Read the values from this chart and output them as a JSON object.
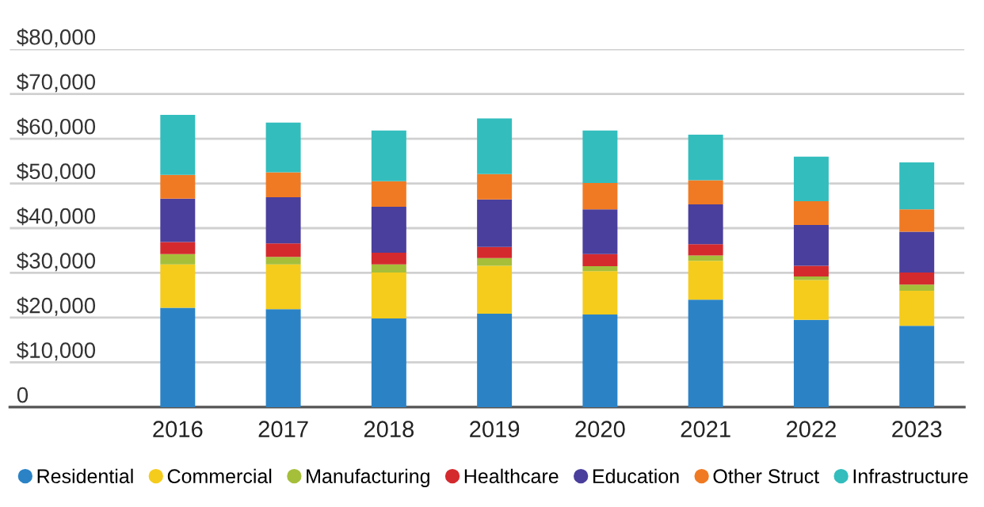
{
  "chart_data": {
    "type": "bar",
    "stacked": true,
    "categories": [
      "2016",
      "2017",
      "2018",
      "2019",
      "2020",
      "2021",
      "2022",
      "2023"
    ],
    "series": [
      {
        "name": "Residential",
        "color": "#2b83c6",
        "values": [
          22200,
          21900,
          19800,
          20900,
          20700,
          24000,
          19500,
          18200
        ]
      },
      {
        "name": "Commercial",
        "color": "#f5cc1c",
        "values": [
          9700,
          10000,
          10300,
          10700,
          9700,
          8700,
          8900,
          7800
        ]
      },
      {
        "name": "Manufacturing",
        "color": "#a5bf3a",
        "values": [
          2300,
          1700,
          1800,
          1700,
          1100,
          1200,
          800,
          1400
        ]
      },
      {
        "name": "Healthcare",
        "color": "#d42a2e",
        "values": [
          2700,
          3000,
          2600,
          2500,
          2700,
          2500,
          2400,
          2700
        ]
      },
      {
        "name": "Education",
        "color": "#4a3f9c",
        "values": [
          9700,
          10300,
          10300,
          10600,
          10000,
          8900,
          9100,
          9100
        ]
      },
      {
        "name": "Other Struct",
        "color": "#f07a23",
        "values": [
          5300,
          5600,
          5700,
          5700,
          5900,
          5400,
          5300,
          5000
        ]
      },
      {
        "name": "Infrastructure",
        "color": "#33bdbd",
        "values": [
          13400,
          11100,
          11300,
          12400,
          11700,
          10200,
          10000,
          10500
        ]
      }
    ],
    "ylim": [
      0,
      80000
    ],
    "yticks": [
      {
        "value": 0,
        "label": "0"
      },
      {
        "value": 10000,
        "label": "$10,000"
      },
      {
        "value": 20000,
        "label": "$20,000"
      },
      {
        "value": 30000,
        "label": "$30,000"
      },
      {
        "value": 40000,
        "label": "$40,000"
      },
      {
        "value": 50000,
        "label": "$50,000"
      },
      {
        "value": 60000,
        "label": "$60,000"
      },
      {
        "value": 70000,
        "label": "$70,000"
      },
      {
        "value": 80000,
        "label": "$80,000"
      }
    ],
    "grid": "y",
    "legend": "bottom",
    "marker": "circle"
  }
}
